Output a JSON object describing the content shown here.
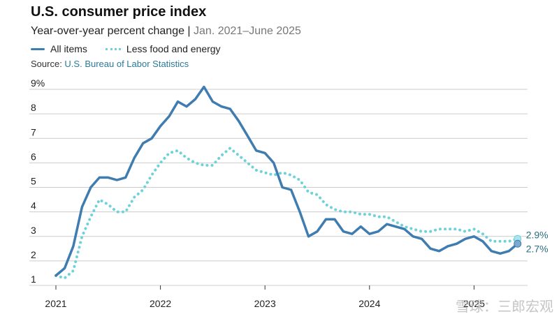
{
  "header": {
    "title": "U.S. consumer price index",
    "subtitle_main": "Year-over-year percent change",
    "subtitle_sep": " | ",
    "subtitle_range": "Jan. 2021–June 2025",
    "source_label": "Source: ",
    "source_value": "U.S. Bureau of Labor Statistics"
  },
  "watermark": "雪球：三郎宏观",
  "colors": {
    "all_items": "#3f7cb0",
    "core": "#6fd2da",
    "grid": "#cccccc"
  },
  "chart_data": {
    "type": "line",
    "title": "U.S. consumer price index",
    "ylabel": "Year-over-year percent change",
    "ylim": [
      1,
      9
    ],
    "xlim": [
      2021.0,
      2025.5
    ],
    "y_ticks": [
      {
        "value": 1,
        "label": "1"
      },
      {
        "value": 2,
        "label": "2"
      },
      {
        "value": 3,
        "label": "3"
      },
      {
        "value": 4,
        "label": "4"
      },
      {
        "value": 5,
        "label": "5"
      },
      {
        "value": 6,
        "label": "6"
      },
      {
        "value": 7,
        "label": "7"
      },
      {
        "value": 8,
        "label": "8"
      },
      {
        "value": 9,
        "label": "9%"
      }
    ],
    "x_ticks": [
      {
        "value": 2021,
        "label": "2021"
      },
      {
        "value": 2022,
        "label": "2022"
      },
      {
        "value": 2023,
        "label": "2023"
      },
      {
        "value": 2024,
        "label": "2024"
      },
      {
        "value": 2025,
        "label": "2025"
      }
    ],
    "series": [
      {
        "name": "All items",
        "style": "solid",
        "end_label": "2.7%",
        "values": [
          1.4,
          1.7,
          2.6,
          4.2,
          5.0,
          5.4,
          5.4,
          5.3,
          5.4,
          6.2,
          6.8,
          7.0,
          7.5,
          7.9,
          8.5,
          8.3,
          8.6,
          9.1,
          8.5,
          8.3,
          8.2,
          7.7,
          7.1,
          6.5,
          6.4,
          6.0,
          5.0,
          4.9,
          4.0,
          3.0,
          3.2,
          3.7,
          3.7,
          3.2,
          3.1,
          3.4,
          3.1,
          3.2,
          3.5,
          3.4,
          3.3,
          3.0,
          2.9,
          2.5,
          2.4,
          2.6,
          2.7,
          2.9,
          3.0,
          2.8,
          2.4,
          2.3,
          2.4,
          2.7
        ]
      },
      {
        "name": "Less food and energy",
        "style": "dotted",
        "end_label": "2.9%",
        "values": [
          1.4,
          1.3,
          1.6,
          3.0,
          3.8,
          4.5,
          4.3,
          4.0,
          4.0,
          4.6,
          4.9,
          5.5,
          6.0,
          6.4,
          6.5,
          6.2,
          6.0,
          5.9,
          5.9,
          6.3,
          6.6,
          6.3,
          6.0,
          5.7,
          5.6,
          5.5,
          5.6,
          5.5,
          5.3,
          4.8,
          4.7,
          4.3,
          4.1,
          4.0,
          4.0,
          3.9,
          3.9,
          3.8,
          3.8,
          3.6,
          3.4,
          3.3,
          3.2,
          3.2,
          3.3,
          3.3,
          3.3,
          3.2,
          3.3,
          3.1,
          2.8,
          2.8,
          2.8,
          2.9
        ]
      }
    ]
  }
}
